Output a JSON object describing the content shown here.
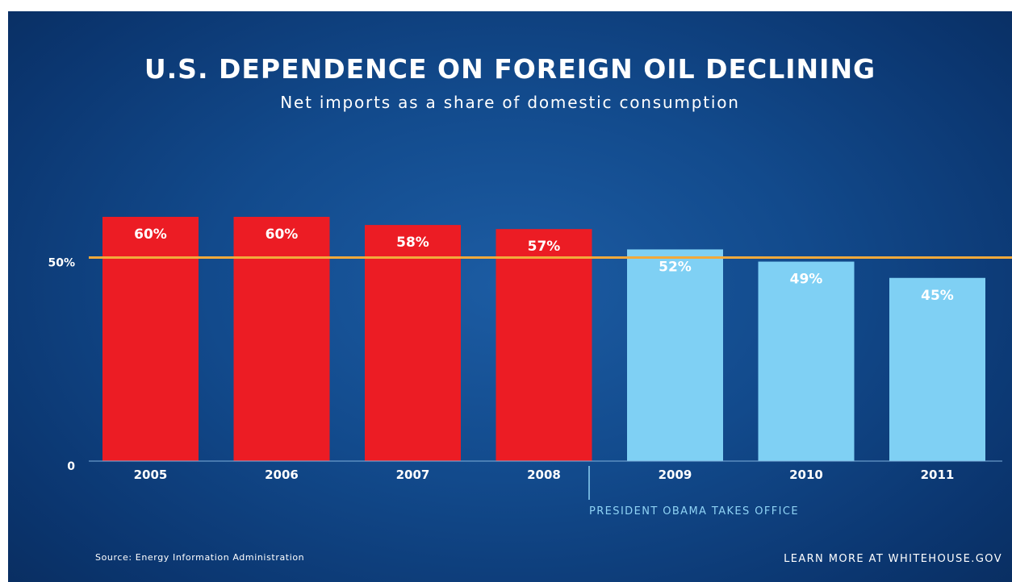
{
  "chart_data": {
    "type": "bar",
    "title": "U.S. DEPENDENCE ON FOREIGN OIL DECLINING",
    "subtitle": "Net imports as a share of domestic consumption",
    "categories": [
      "2005",
      "2006",
      "2007",
      "2008",
      "2009",
      "2010",
      "2011"
    ],
    "values": [
      60,
      60,
      58,
      57,
      52,
      49,
      45
    ],
    "value_labels": [
      "60%",
      "60%",
      "58%",
      "57%",
      "52%",
      "49%",
      "45%"
    ],
    "bar_colors": [
      "#ec1c24",
      "#ec1c24",
      "#ec1c24",
      "#ec1c24",
      "#7fd0f4",
      "#7fd0f4",
      "#7fd0f4"
    ],
    "ylim": [
      0,
      60
    ],
    "y_ticks": [
      {
        "value": 0,
        "label": "0"
      },
      {
        "value": 50,
        "label": "50%"
      }
    ],
    "reference_line": {
      "value": 50,
      "color": "#f2a93b"
    },
    "annotation": {
      "text": "PRESIDENT OBAMA TAKES OFFICE",
      "at_category": "2009"
    },
    "grid": false,
    "legend": "none"
  },
  "footer": {
    "source": "Source: Energy Information Administration",
    "learn_more": "LEARN MORE AT WHITEHOUSE.GOV"
  },
  "colors": {
    "background": "#124a8c",
    "before_bars": "#ec1c24",
    "after_bars": "#7fd0f4",
    "reference_line": "#f2a93b",
    "annotation_text": "#8fd3f5",
    "text": "#ffffff"
  }
}
